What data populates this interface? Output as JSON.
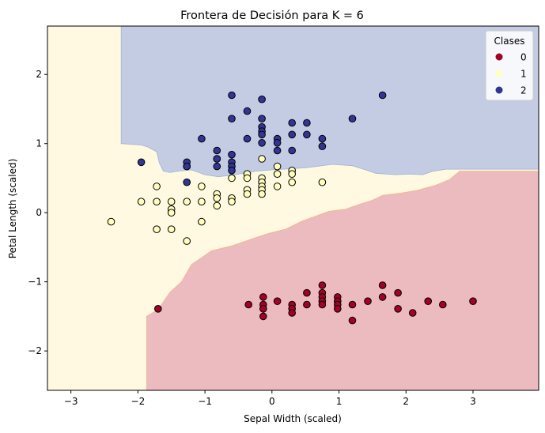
{
  "chart_data": {
    "type": "scatter",
    "title": "Frontera de Decisión para K = 6",
    "xlabel": "Sepal Width (scaled)",
    "ylabel": "Petal Length (scaled)",
    "xlim": [
      -3.35,
      3.98
    ],
    "ylim": [
      -2.57,
      2.7
    ],
    "xticks": [
      -3,
      -2,
      -1,
      0,
      1,
      2,
      3
    ],
    "yticks": [
      -2,
      -1,
      0,
      1,
      2
    ],
    "xtick_labels": [
      "−3",
      "−2",
      "−1",
      "0",
      "1",
      "2",
      "3"
    ],
    "ytick_labels": [
      "−2",
      "−1",
      "0",
      "1",
      "2"
    ],
    "grid": false,
    "legend": {
      "title": "Clases",
      "placement": "top-right",
      "entries": [
        {
          "label": "0",
          "color": "#a50026"
        },
        {
          "label": "1",
          "color": "#ffffbf"
        },
        {
          "label": "2",
          "color": "#313695"
        }
      ]
    },
    "regions": [
      {
        "class": "1",
        "color": "#fff9e1"
      },
      {
        "class": "2",
        "color": "#c4cce4"
      },
      {
        "class": "0",
        "color": "#ecbbbf"
      }
    ],
    "region_boundaries": {
      "class2": [
        [
          -2.25,
          2.7
        ],
        [
          -2.25,
          1.0
        ],
        [
          -1.95,
          0.98
        ],
        [
          -1.85,
          0.95
        ],
        [
          -1.72,
          0.88
        ],
        [
          -1.68,
          0.72
        ],
        [
          -1.62,
          0.6
        ],
        [
          -1.52,
          0.58
        ],
        [
          -1.42,
          0.6
        ],
        [
          -1.2,
          0.62
        ],
        [
          -1.0,
          0.55
        ],
        [
          -0.8,
          0.52
        ],
        [
          -0.55,
          0.55
        ],
        [
          -0.25,
          0.6
        ],
        [
          0.0,
          0.62
        ],
        [
          0.5,
          0.65
        ],
        [
          0.9,
          0.7
        ],
        [
          1.2,
          0.68
        ],
        [
          1.4,
          0.62
        ],
        [
          1.55,
          0.57
        ],
        [
          1.85,
          0.55
        ],
        [
          2.05,
          0.56
        ],
        [
          2.25,
          0.55
        ],
        [
          2.4,
          0.6
        ],
        [
          2.6,
          0.63
        ],
        [
          3.98,
          0.63
        ],
        [
          3.98,
          2.7
        ]
      ],
      "class0": [
        [
          -1.87,
          -2.57
        ],
        [
          -1.87,
          -1.5
        ],
        [
          -1.7,
          -1.4
        ],
        [
          -1.52,
          -1.15
        ],
        [
          -1.35,
          -1.0
        ],
        [
          -1.2,
          -0.75
        ],
        [
          -0.9,
          -0.55
        ],
        [
          -0.6,
          -0.48
        ],
        [
          -0.3,
          -0.38
        ],
        [
          -0.05,
          -0.3
        ],
        [
          0.2,
          -0.24
        ],
        [
          0.45,
          -0.12
        ],
        [
          0.65,
          -0.05
        ],
        [
          0.85,
          0.02
        ],
        [
          1.1,
          0.05
        ],
        [
          1.3,
          0.12
        ],
        [
          1.5,
          0.18
        ],
        [
          1.65,
          0.25
        ],
        [
          1.9,
          0.28
        ],
        [
          2.15,
          0.32
        ],
        [
          2.45,
          0.4
        ],
        [
          2.65,
          0.48
        ],
        [
          2.8,
          0.6
        ],
        [
          3.98,
          0.6
        ],
        [
          3.98,
          -2.57
        ]
      ]
    },
    "series": [
      {
        "name": "0",
        "color": "#a50026",
        "points": [
          [
            -1.7,
            -1.39
          ],
          [
            -0.35,
            -1.33
          ],
          [
            -0.13,
            -1.22
          ],
          [
            -0.13,
            -1.33
          ],
          [
            -0.13,
            -1.39
          ],
          [
            -0.13,
            -1.5
          ],
          [
            0.08,
            -1.28
          ],
          [
            0.3,
            -1.33
          ],
          [
            0.3,
            -1.39
          ],
          [
            0.3,
            -1.45
          ],
          [
            0.52,
            -1.16
          ],
          [
            0.52,
            -1.33
          ],
          [
            0.75,
            -1.05
          ],
          [
            0.75,
            -1.16
          ],
          [
            0.75,
            -1.22
          ],
          [
            0.75,
            -1.28
          ],
          [
            0.75,
            -1.33
          ],
          [
            0.98,
            -1.22
          ],
          [
            0.98,
            -1.28
          ],
          [
            0.98,
            -1.33
          ],
          [
            0.98,
            -1.39
          ],
          [
            1.2,
            -1.33
          ],
          [
            1.2,
            -1.56
          ],
          [
            1.43,
            -1.28
          ],
          [
            1.65,
            -1.05
          ],
          [
            1.65,
            -1.22
          ],
          [
            1.88,
            -1.16
          ],
          [
            1.88,
            -1.39
          ],
          [
            2.1,
            -1.45
          ],
          [
            2.33,
            -1.28
          ],
          [
            2.55,
            -1.33
          ],
          [
            3.0,
            -1.28
          ]
        ]
      },
      {
        "name": "1",
        "color": "#ffffbf",
        "points": [
          [
            -2.4,
            -0.13
          ],
          [
            -1.95,
            0.16
          ],
          [
            -1.72,
            0.38
          ],
          [
            -1.72,
            0.16
          ],
          [
            -1.72,
            -0.24
          ],
          [
            -1.5,
            0.16
          ],
          [
            -1.5,
            0.05
          ],
          [
            -1.5,
            0.0
          ],
          [
            -1.5,
            -0.24
          ],
          [
            -1.27,
            0.67
          ],
          [
            -1.27,
            0.16
          ],
          [
            -1.27,
            -0.41
          ],
          [
            -1.05,
            0.38
          ],
          [
            -1.05,
            0.16
          ],
          [
            -1.05,
            -0.13
          ],
          [
            -0.82,
            0.78
          ],
          [
            -0.82,
            0.27
          ],
          [
            -0.82,
            0.21
          ],
          [
            -0.82,
            0.1
          ],
          [
            -0.6,
            0.5
          ],
          [
            -0.6,
            0.21
          ],
          [
            -0.6,
            0.16
          ],
          [
            -0.37,
            0.56
          ],
          [
            -0.37,
            0.5
          ],
          [
            -0.37,
            0.33
          ],
          [
            -0.37,
            0.27
          ],
          [
            -0.15,
            0.78
          ],
          [
            -0.15,
            0.5
          ],
          [
            -0.15,
            0.44
          ],
          [
            -0.15,
            0.38
          ],
          [
            -0.15,
            0.33
          ],
          [
            -0.15,
            0.27
          ],
          [
            0.08,
            0.67
          ],
          [
            0.08,
            0.56
          ],
          [
            0.08,
            0.38
          ],
          [
            0.3,
            0.61
          ],
          [
            0.3,
            0.56
          ],
          [
            0.3,
            0.44
          ],
          [
            0.75,
            0.44
          ]
        ]
      },
      {
        "name": "2",
        "color": "#313695",
        "points": [
          [
            -1.95,
            0.73
          ],
          [
            -1.27,
            0.73
          ],
          [
            -1.27,
            0.67
          ],
          [
            -1.27,
            0.44
          ],
          [
            -1.05,
            1.07
          ],
          [
            -0.82,
            0.9
          ],
          [
            -0.82,
            0.78
          ],
          [
            -0.82,
            0.67
          ],
          [
            -0.6,
            1.7
          ],
          [
            -0.6,
            1.36
          ],
          [
            -0.6,
            0.84
          ],
          [
            -0.6,
            0.73
          ],
          [
            -0.6,
            0.67
          ],
          [
            -0.6,
            0.61
          ],
          [
            -0.37,
            1.47
          ],
          [
            -0.37,
            1.07
          ],
          [
            -0.15,
            1.64
          ],
          [
            -0.15,
            1.36
          ],
          [
            -0.15,
            1.24
          ],
          [
            -0.15,
            1.18
          ],
          [
            -0.15,
            1.13
          ],
          [
            -0.15,
            1.01
          ],
          [
            0.08,
            1.07
          ],
          [
            0.08,
            1.01
          ],
          [
            0.08,
            0.9
          ],
          [
            0.3,
            1.3
          ],
          [
            0.3,
            1.13
          ],
          [
            0.3,
            0.9
          ],
          [
            0.52,
            1.3
          ],
          [
            0.52,
            1.13
          ],
          [
            0.75,
            1.07
          ],
          [
            0.75,
            0.96
          ],
          [
            1.2,
            1.36
          ],
          [
            1.65,
            1.7
          ]
        ]
      }
    ]
  }
}
